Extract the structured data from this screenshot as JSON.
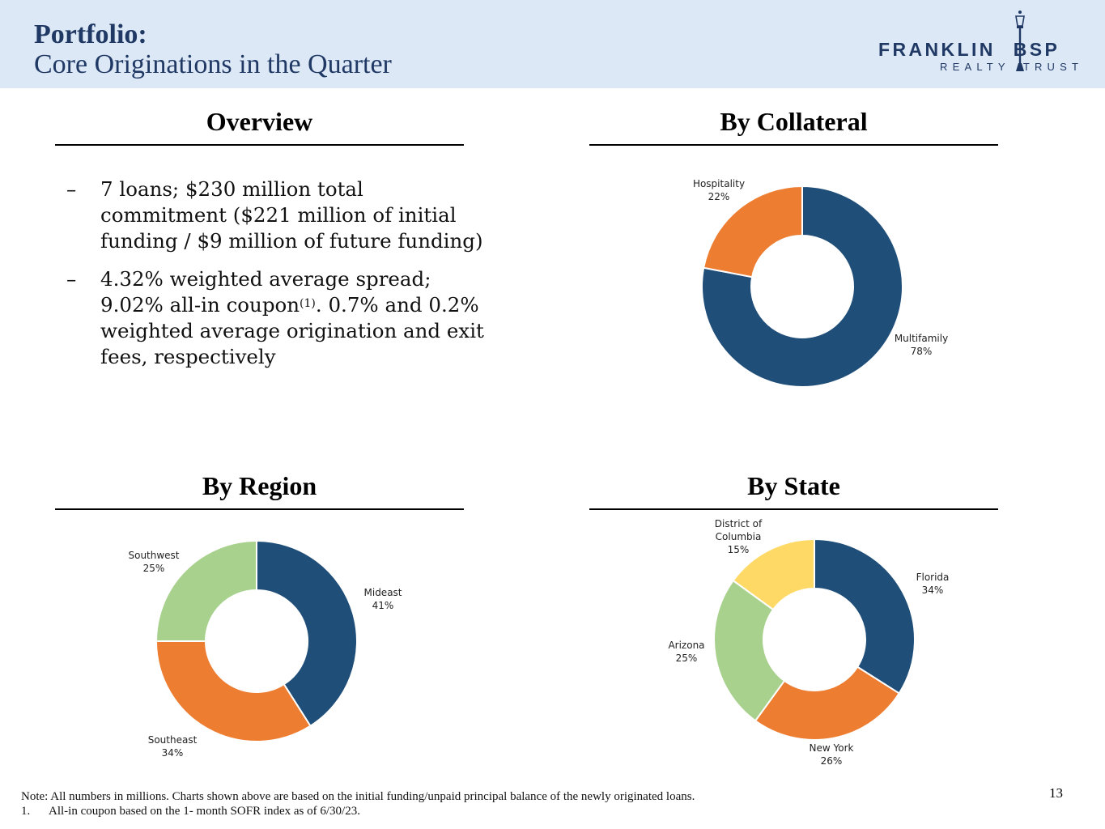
{
  "header": {
    "title": "Portfolio:",
    "subtitle": "Core Originations in the Quarter",
    "logo_main_left": "FRANKLIN",
    "logo_main_right": "BSP",
    "logo_sub_left": "REALTY",
    "logo_sub_right": "TRUST",
    "accent_color": "#1f3864",
    "band_color": "#dce8f5"
  },
  "overview": {
    "title": "Overview",
    "dash": "–",
    "bullet1": "7 loans; $230 million total commitment ($221 million of initial funding / $9 million of future funding)",
    "bullet2_a": "4.32% weighted average spread; 9.02% all-in coupon",
    "bullet2_sup": "(1)",
    "bullet2_b": ". 0.7% and 0.2% weighted average origination and exit fees, respectively"
  },
  "chart_data": [
    {
      "type": "pie",
      "title": "By Collateral",
      "categories": [
        "Multifamily",
        "Hospitality"
      ],
      "values": [
        78,
        22
      ],
      "value_labels": [
        "78%",
        "22%"
      ],
      "colors": [
        "#1f4e79",
        "#ed7d31"
      ]
    },
    {
      "type": "pie",
      "title": "By Region",
      "categories": [
        "Mideast",
        "Southeast",
        "Southwest"
      ],
      "values": [
        41,
        34,
        25
      ],
      "value_labels": [
        "41%",
        "34%",
        "25%"
      ],
      "colors": [
        "#1f4e79",
        "#ed7d31",
        "#a9d18e"
      ]
    },
    {
      "type": "pie",
      "title": "By State",
      "categories": [
        "Florida",
        "New York",
        "Arizona",
        "District of Columbia"
      ],
      "values": [
        34,
        26,
        25,
        15
      ],
      "value_labels": [
        "34%",
        "26%",
        "25%",
        "15%"
      ],
      "colors": [
        "#1f4e79",
        "#ed7d31",
        "#a9d18e",
        "#ffd966"
      ]
    }
  ],
  "footer": {
    "note": "Note: All numbers in millions. Charts shown above are based on the initial funding/unpaid principal balance of the newly originated loans.",
    "footnote_num": "1.",
    "footnote_text": "All-in coupon based on the 1- month SOFR index as of 6/30/23.",
    "page_number": "13"
  }
}
